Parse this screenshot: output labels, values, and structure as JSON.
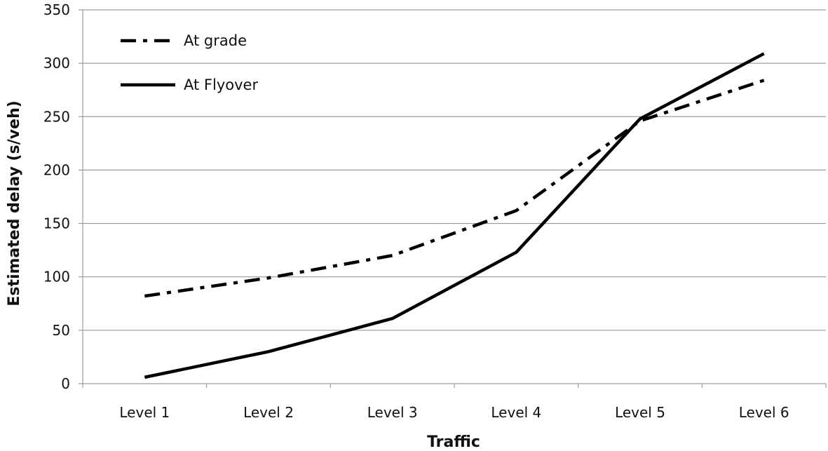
{
  "chart_data": {
    "type": "line",
    "categories": [
      "Level 1",
      "Level 2",
      "Level 3",
      "Level 4",
      "Level 5",
      "Level 6"
    ],
    "series": [
      {
        "name": "At grade",
        "values": [
          82,
          99,
          120,
          162,
          246,
          284
        ],
        "style": "dash-dot",
        "color": "#000000"
      },
      {
        "name": "At Flyover",
        "values": [
          6,
          30,
          61,
          123,
          248,
          309
        ],
        "style": "solid",
        "color": "#000000"
      }
    ],
    "title": "",
    "xlabel": "Traffic",
    "ylabel": "Estimated delay (s/veh)",
    "ylim": [
      0,
      350
    ],
    "yticks": [
      "0",
      "50",
      "100",
      "150",
      "200",
      "250",
      "300",
      "350"
    ],
    "grid": true,
    "legend_position": "top-left"
  }
}
